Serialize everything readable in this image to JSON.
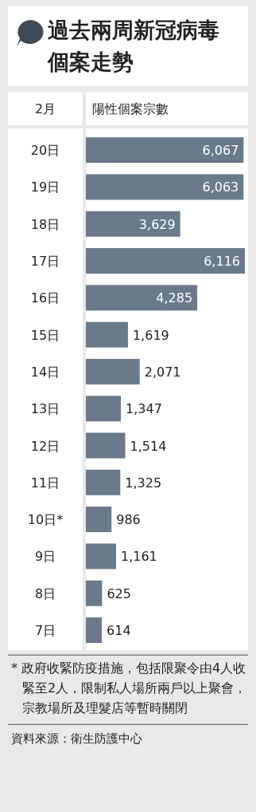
{
  "chart_data": {
    "type": "bar",
    "orientation": "horizontal",
    "title": "過去兩周新冠病毒個案走勢",
    "ylabel": "2月",
    "xlabel": "陽性個案宗數",
    "categories": [
      "20日",
      "19日",
      "18日",
      "17日",
      "16日",
      "15日",
      "14日",
      "13日",
      "12日",
      "11日",
      "10日*",
      "9日",
      "8日",
      "7日"
    ],
    "values": [
      6067,
      6063,
      3629,
      6116,
      4285,
      1619,
      2071,
      1347,
      1514,
      1325,
      986,
      1161,
      625,
      614
    ],
    "color": "#6b7a8b",
    "value_labels": [
      "6,067",
      "6,063",
      "3,629",
      "6,116",
      "4,285",
      "1,619",
      "2,071",
      "1,347",
      "1,514",
      "1,325",
      "986",
      "1,161",
      "625",
      "614"
    ],
    "annotations": [
      "* 政府收緊防疫措施，包括限聚令由4人收緊至2人，限制私人場所兩戶以上聚會，宗教場所及理髮店等暫時關閉",
      "資料來源：衛生防護中心"
    ]
  }
}
